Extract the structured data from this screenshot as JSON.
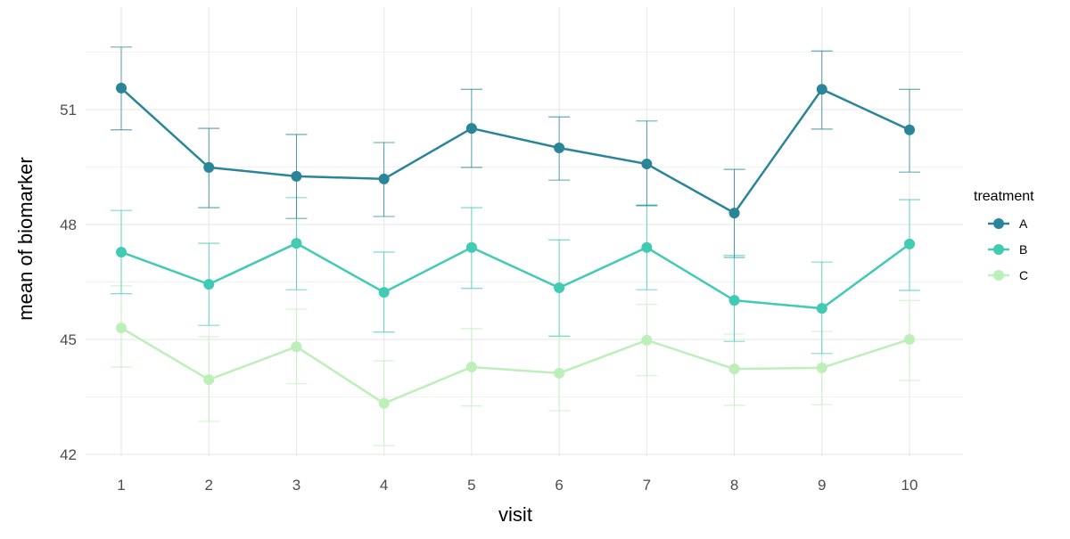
{
  "chart_data": {
    "type": "line",
    "title": "",
    "xlabel": "visit",
    "ylabel": "mean of biomarker",
    "x": [
      1,
      2,
      3,
      4,
      5,
      6,
      7,
      8,
      9,
      10
    ],
    "x_ticks": [
      "1",
      "2",
      "3",
      "4",
      "5",
      "6",
      "7",
      "8",
      "9",
      "10"
    ],
    "y_ticks": [
      42,
      45,
      48,
      51
    ],
    "ylim": [
      41.8,
      53.0
    ],
    "grid": true,
    "legend": {
      "title": "treatment",
      "position": "right"
    },
    "error_bars": true,
    "series": [
      {
        "name": "A",
        "color": "#2a8599",
        "values": [
          51.56,
          49.49,
          49.26,
          49.19,
          50.51,
          50.0,
          49.58,
          48.3,
          51.53,
          50.47
        ],
        "lower": [
          50.47,
          48.44,
          48.16,
          48.21,
          49.49,
          49.16,
          48.49,
          47.14,
          50.49,
          49.37
        ],
        "upper": [
          52.63,
          50.51,
          50.35,
          50.14,
          51.53,
          50.81,
          50.7,
          49.44,
          52.53,
          51.53
        ]
      },
      {
        "name": "B",
        "color": "#41cab4",
        "values": [
          47.28,
          46.44,
          47.51,
          46.23,
          47.4,
          46.35,
          47.4,
          46.02,
          45.81,
          47.49
        ],
        "lower": [
          46.19,
          45.37,
          46.3,
          45.19,
          46.33,
          45.09,
          46.3,
          44.95,
          44.63,
          46.28
        ],
        "upper": [
          48.37,
          47.51,
          48.7,
          47.28,
          48.44,
          47.6,
          48.51,
          47.19,
          47.02,
          48.65
        ]
      },
      {
        "name": "C",
        "color": "#bdefb9",
        "values": [
          45.3,
          43.95,
          44.81,
          43.33,
          44.28,
          44.12,
          44.98,
          44.23,
          44.26,
          45.0
        ],
        "lower": [
          44.28,
          42.86,
          43.84,
          42.23,
          43.26,
          43.14,
          44.05,
          43.28,
          43.3,
          43.93
        ],
        "upper": [
          46.4,
          45.07,
          45.79,
          44.44,
          45.28,
          45.07,
          45.91,
          45.14,
          45.21,
          46.02
        ]
      }
    ]
  }
}
